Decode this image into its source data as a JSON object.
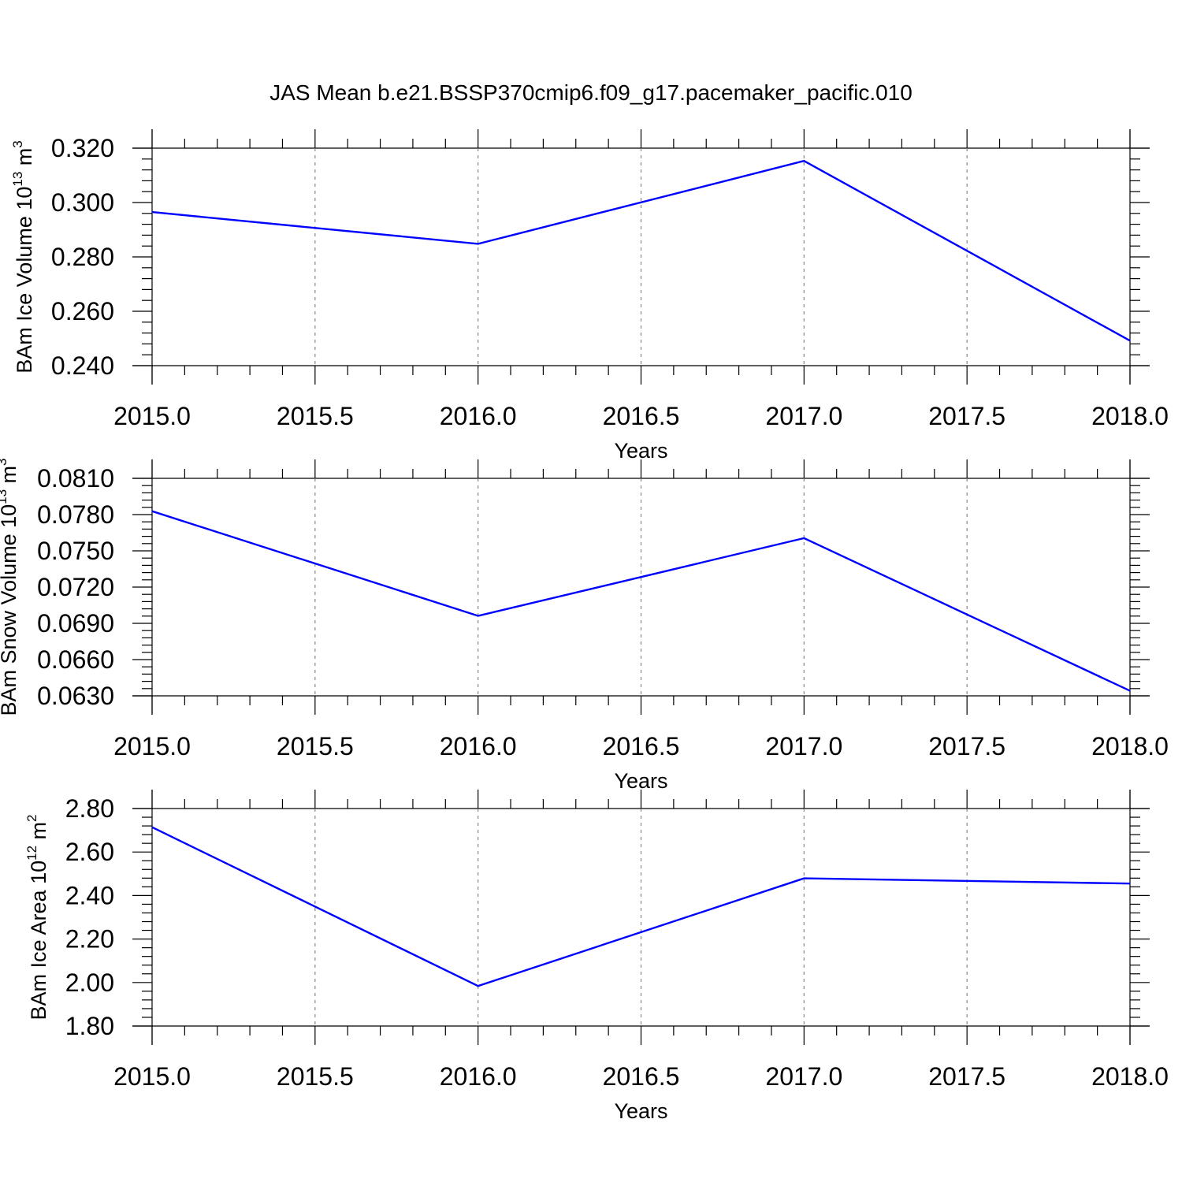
{
  "title": "JAS Mean b.e21.BSSP370cmip6.f09_g17.pacemaker_pacific.010",
  "colors": {
    "series": "#0000ff",
    "axis": "#000000",
    "grid": "#888888"
  },
  "chart_data": [
    {
      "type": "line",
      "xlabel": "Years",
      "ylabel": {
        "text": "BAm Ice Volume 10",
        "exponent": "13",
        "unit": " m",
        "unit_exponent": "3"
      },
      "x": [
        2015,
        2016,
        2017,
        2018
      ],
      "series": [
        {
          "values": [
            0.2965,
            0.2848,
            0.3153,
            0.2492
          ]
        }
      ],
      "xlim": [
        2015,
        2018
      ],
      "ylim": [
        0.24,
        0.32
      ],
      "x_ticks": [
        "2015.0",
        "2015.5",
        "2016.0",
        "2016.5",
        "2017.0",
        "2017.5",
        "2018.0"
      ],
      "y_ticks": [
        "0.240",
        "0.260",
        "0.280",
        "0.300",
        "0.320"
      ],
      "grid": "vertical-dashed"
    },
    {
      "type": "line",
      "xlabel": "Years",
      "ylabel": {
        "text": "BAm Snow Volume 10",
        "exponent": "13",
        "unit": " m",
        "unit_exponent": "3"
      },
      "x": [
        2015,
        2016,
        2017,
        2018
      ],
      "series": [
        {
          "values": [
            0.07828,
            0.06962,
            0.07605,
            0.06342
          ]
        }
      ],
      "xlim": [
        2015,
        2018
      ],
      "ylim": [
        0.063,
        0.081
      ],
      "x_ticks": [
        "2015.0",
        "2015.5",
        "2016.0",
        "2016.5",
        "2017.0",
        "2017.5",
        "2018.0"
      ],
      "y_ticks": [
        "0.0630",
        "0.0660",
        "0.0690",
        "0.0720",
        "0.0750",
        "0.0780",
        "0.0810"
      ],
      "grid": "vertical-dashed"
    },
    {
      "type": "line",
      "xlabel": "Years",
      "ylabel": {
        "text": "BAm Ice Area 10",
        "exponent": "12",
        "unit": " m",
        "unit_exponent": "2"
      },
      "x": [
        2015,
        2016,
        2017,
        2018
      ],
      "series": [
        {
          "values": [
            2.714,
            1.984,
            2.479,
            2.455
          ]
        }
      ],
      "xlim": [
        2015,
        2018
      ],
      "ylim": [
        1.8,
        2.8
      ],
      "x_ticks": [
        "2015.0",
        "2015.5",
        "2016.0",
        "2016.5",
        "2017.0",
        "2017.5",
        "2018.0"
      ],
      "y_ticks": [
        "1.80",
        "2.00",
        "2.20",
        "2.40",
        "2.60",
        "2.80"
      ],
      "grid": "vertical-dashed"
    }
  ]
}
